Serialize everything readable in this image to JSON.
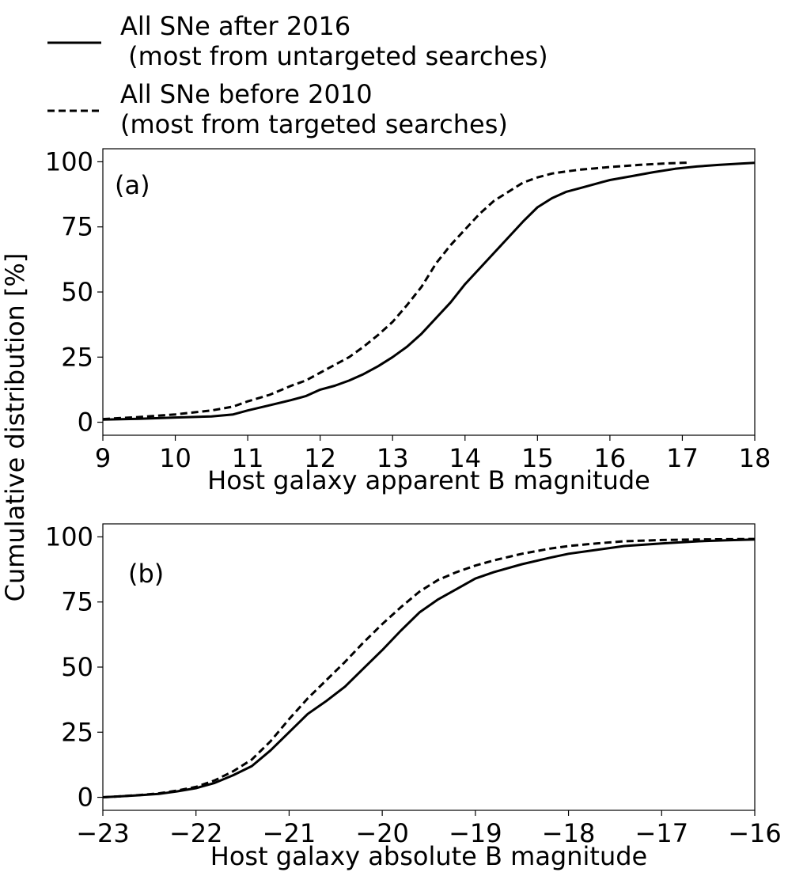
{
  "legend": {
    "entries": [
      {
        "key": "after2016",
        "line1": "All SNe after 2016",
        "line2": " (most from untargeted searches)",
        "style": "solid"
      },
      {
        "key": "before2010",
        "line1": "All SNe before 2010",
        "line2": "(most from targeted searches)",
        "style": "dashed"
      }
    ],
    "placement": "top-left, above plots"
  },
  "ylabel_shared": "Cumulative distribution [%]",
  "chart_data": [
    {
      "type": "line",
      "panel_label": "(a)",
      "xlabel": "Host galaxy apparent B magnitude",
      "xlim": [
        9,
        18
      ],
      "ylim": [
        -5,
        105
      ],
      "xticks": [
        9,
        10,
        11,
        12,
        13,
        14,
        15,
        16,
        17,
        18
      ],
      "yticks": [
        0,
        25,
        50,
        75,
        100
      ],
      "grid": false,
      "series": [
        {
          "key": "after2016",
          "style": "solid",
          "x": [
            9,
            9.5,
            10,
            10.5,
            10.8,
            11,
            11.3,
            11.6,
            11.8,
            12,
            12.2,
            12.4,
            12.6,
            12.8,
            13,
            13.2,
            13.4,
            13.6,
            13.8,
            14,
            14.2,
            14.4,
            14.6,
            14.8,
            15,
            15.2,
            15.4,
            15.6,
            15.8,
            16,
            16.3,
            16.6,
            16.9,
            17.2,
            17.5,
            17.8,
            18
          ],
          "y": [
            1,
            1.3,
            1.8,
            2.2,
            3,
            4.5,
            6.5,
            8.5,
            10,
            12.5,
            14,
            16,
            18.5,
            21.5,
            25,
            29,
            34,
            40,
            46,
            53,
            59,
            65,
            71,
            77,
            82.5,
            86,
            88.5,
            90,
            91.5,
            93,
            94.5,
            96,
            97.3,
            98.2,
            98.8,
            99.3,
            99.6
          ]
        },
        {
          "key": "before2010",
          "style": "dashed",
          "x": [
            9,
            9.5,
            10,
            10.5,
            10.8,
            11,
            11.3,
            11.6,
            11.8,
            12,
            12.2,
            12.4,
            12.6,
            12.8,
            13,
            13.2,
            13.4,
            13.6,
            13.8,
            14,
            14.2,
            14.4,
            14.6,
            14.8,
            15,
            15.2,
            15.4,
            15.6,
            15.8,
            16,
            16.2,
            16.4,
            16.6,
            16.8,
            17,
            17.1
          ],
          "y": [
            1.2,
            2,
            3,
            4.5,
            6,
            8,
            10.5,
            14,
            16,
            19,
            22,
            25,
            29,
            33.5,
            38.5,
            45,
            52,
            61,
            68,
            74,
            80,
            85,
            88.5,
            92,
            94,
            95.5,
            96.3,
            97,
            97.5,
            98,
            98.4,
            98.8,
            99.1,
            99.4,
            99.6,
            99.7
          ]
        }
      ]
    },
    {
      "type": "line",
      "panel_label": "(b)",
      "xlabel": "Host galaxy absolute B magnitude",
      "xlim": [
        -23,
        -16
      ],
      "ylim": [
        -5,
        105
      ],
      "xticks": [
        -23,
        -22,
        -21,
        -20,
        -19,
        -18,
        -17,
        -16
      ],
      "grid": false,
      "yticks": [
        0,
        25,
        50,
        75,
        100
      ],
      "series": [
        {
          "key": "after2016",
          "style": "solid",
          "x": [
            -23,
            -22.8,
            -22.6,
            -22.4,
            -22.2,
            -22,
            -21.8,
            -21.6,
            -21.4,
            -21.2,
            -21,
            -20.8,
            -20.6,
            -20.4,
            -20.2,
            -20,
            -19.8,
            -19.6,
            -19.4,
            -19.2,
            -19,
            -18.8,
            -18.5,
            -18.2,
            -18,
            -17.7,
            -17.4,
            -17,
            -16.6,
            -16.3,
            -16
          ],
          "y": [
            0,
            0.4,
            0.8,
            1.3,
            2.3,
            3.5,
            5.5,
            8.5,
            12,
            18,
            25,
            32,
            37,
            42.5,
            49.5,
            56.5,
            64,
            71,
            76,
            80,
            84,
            86.5,
            89.5,
            92,
            93.5,
            95,
            96.5,
            97.5,
            98.3,
            98.7,
            99
          ]
        },
        {
          "key": "before2010",
          "style": "dashed",
          "x": [
            -23,
            -22.8,
            -22.6,
            -22.4,
            -22.2,
            -22,
            -21.8,
            -21.6,
            -21.4,
            -21.2,
            -21,
            -20.8,
            -20.6,
            -20.4,
            -20.2,
            -20,
            -19.8,
            -19.6,
            -19.4,
            -19.2,
            -19,
            -18.8,
            -18.5,
            -18.2,
            -18,
            -17.7,
            -17.4,
            -17,
            -16.6,
            -16.3,
            -16
          ],
          "y": [
            0,
            0.4,
            0.9,
            1.5,
            2.6,
            4,
            6.5,
            10,
            14.5,
            21.5,
            30,
            38,
            45,
            52,
            59.5,
            66.5,
            73,
            79,
            83.5,
            86.5,
            89,
            91,
            93.5,
            95.5,
            96.5,
            97.5,
            98.3,
            98.8,
            99,
            99.1,
            99.2
          ]
        }
      ]
    }
  ]
}
